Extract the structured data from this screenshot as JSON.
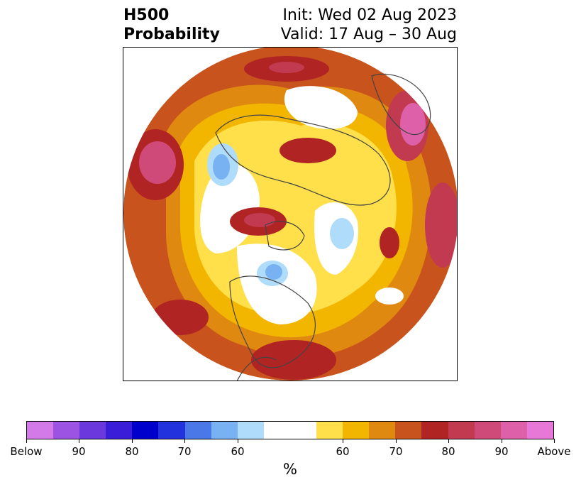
{
  "header": {
    "variable": "H500",
    "product": "Probability",
    "init": "Init: Wed 02 Aug 2023",
    "valid": "Valid: 17 Aug – 30 Aug"
  },
  "colorbar": {
    "unit_label": "%",
    "tick_labels": [
      "Below",
      "90",
      "80",
      "70",
      "60",
      "60",
      "70",
      "80",
      "90",
      "Above"
    ],
    "colors": [
      "#d479e8",
      "#9c53e3",
      "#6a38dd",
      "#3a1dd8",
      "#0000cc",
      "#2233dd",
      "#4a78e6",
      "#78b2f2",
      "#b0dcfb",
      "#ffffff",
      "#ffe04a",
      "#f2b600",
      "#e08910",
      "#c8531c",
      "#b02424",
      "#c23a50",
      "#cf4a78",
      "#de60a8",
      "#e878d8"
    ]
  },
  "map": {
    "projection": "north-polar-stereographic",
    "land_outline_color": "#444444"
  }
}
